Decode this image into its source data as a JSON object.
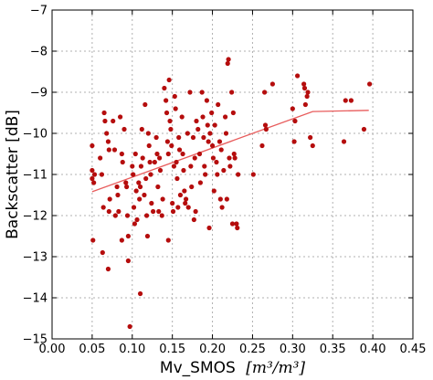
{
  "chart_data": {
    "type": "scatter",
    "xlabel": "Mv_SMOS",
    "xlabel_unit": "[m³/m³]",
    "ylabel": "Backscatter [dB]",
    "xlim": [
      0.0,
      0.45
    ],
    "ylim": [
      -15,
      -7
    ],
    "x_ticks": [
      "0.00",
      "0.05",
      "0.10",
      "0.15",
      "0.20",
      "0.25",
      "0.30",
      "0.35",
      "0.40",
      "0.45"
    ],
    "y_ticks": [
      "−15",
      "−14",
      "−13",
      "−12",
      "−11",
      "−10",
      "−9",
      "−8",
      "−7"
    ],
    "grid": true,
    "point_color": "#b50d0d",
    "line_color": "#e85c5c",
    "points": [
      [
        0.05,
        -10.3
      ],
      [
        0.05,
        -10.9
      ],
      [
        0.05,
        -11.1
      ],
      [
        0.052,
        -11.2
      ],
      [
        0.053,
        -11.0
      ],
      [
        0.051,
        -12.6
      ],
      [
        0.06,
        -10.6
      ],
      [
        0.062,
        -11.0
      ],
      [
        0.064,
        -11.8
      ],
      [
        0.063,
        -12.9
      ],
      [
        0.065,
        -9.5
      ],
      [
        0.066,
        -9.7
      ],
      [
        0.068,
        -10.0
      ],
      [
        0.07,
        -10.2
      ],
      [
        0.071,
        -10.4
      ],
      [
        0.071,
        -11.9
      ],
      [
        0.072,
        -11.6
      ],
      [
        0.07,
        -13.3
      ],
      [
        0.076,
        -9.7
      ],
      [
        0.078,
        -10.4
      ],
      [
        0.079,
        -12.0
      ],
      [
        0.081,
        -11.3
      ],
      [
        0.082,
        -11.5
      ],
      [
        0.083,
        -11.9
      ],
      [
        0.085,
        -9.6
      ],
      [
        0.087,
        -10.5
      ],
      [
        0.088,
        -10.7
      ],
      [
        0.087,
        -12.6
      ],
      [
        0.09,
        -9.9
      ],
      [
        0.092,
        -11.2
      ],
      [
        0.093,
        -11.3
      ],
      [
        0.094,
        -12.0
      ],
      [
        0.095,
        -12.5
      ],
      [
        0.095,
        -13.1
      ],
      [
        0.097,
        -14.7
      ],
      [
        0.1,
        -10.8
      ],
      [
        0.101,
        -11.0
      ],
      [
        0.102,
        -11.8
      ],
      [
        0.103,
        -12.2
      ],
      [
        0.104,
        -10.5
      ],
      [
        0.105,
        -11.4
      ],
      [
        0.106,
        -12.1
      ],
      [
        0.108,
        -11.2
      ],
      [
        0.109,
        -11.6
      ],
      [
        0.11,
        -11.3
      ],
      [
        0.111,
        -10.8
      ],
      [
        0.11,
        -13.9
      ],
      [
        0.112,
        -9.9
      ],
      [
        0.113,
        -10.6
      ],
      [
        0.115,
        -11.5
      ],
      [
        0.116,
        -9.3
      ],
      [
        0.117,
        -11.1
      ],
      [
        0.118,
        -12.0
      ],
      [
        0.119,
        -12.5
      ],
      [
        0.12,
        -10.0
      ],
      [
        0.121,
        -10.3
      ],
      [
        0.122,
        -10.7
      ],
      [
        0.123,
        -11.0
      ],
      [
        0.124,
        -11.7
      ],
      [
        0.126,
        -11.9
      ],
      [
        0.128,
        -10.7
      ],
      [
        0.13,
        -10.1
      ],
      [
        0.131,
        -10.5
      ],
      [
        0.132,
        -11.3
      ],
      [
        0.133,
        -11.9
      ],
      [
        0.134,
        -10.6
      ],
      [
        0.135,
        -10.9
      ],
      [
        0.137,
        -12.0
      ],
      [
        0.138,
        -11.6
      ],
      [
        0.14,
        -8.9
      ],
      [
        0.142,
        -9.2
      ],
      [
        0.143,
        -9.5
      ],
      [
        0.144,
        -10.2
      ],
      [
        0.145,
        -10.5
      ],
      [
        0.145,
        -12.6
      ],
      [
        0.146,
        -8.7
      ],
      [
        0.147,
        -9.7
      ],
      [
        0.148,
        -9.9
      ],
      [
        0.149,
        -10.3
      ],
      [
        0.15,
        -11.7
      ],
      [
        0.151,
        -11.9
      ],
      [
        0.152,
        -10.8
      ],
      [
        0.153,
        -9.1
      ],
      [
        0.154,
        -9.4
      ],
      [
        0.155,
        -10.7
      ],
      [
        0.156,
        -11.1
      ],
      [
        0.157,
        -11.8
      ],
      [
        0.158,
        -10.1
      ],
      [
        0.159,
        -10.4
      ],
      [
        0.16,
        -11.5
      ],
      [
        0.162,
        -9.6
      ],
      [
        0.163,
        -10.5
      ],
      [
        0.164,
        -10.9
      ],
      [
        0.165,
        -11.4
      ],
      [
        0.166,
        -11.7
      ],
      [
        0.167,
        -11.6
      ],
      [
        0.169,
        -10.0
      ],
      [
        0.17,
        -11.8
      ],
      [
        0.172,
        -9.0
      ],
      [
        0.173,
        -10.8
      ],
      [
        0.174,
        -11.3
      ],
      [
        0.176,
        -10.1
      ],
      [
        0.177,
        -12.1
      ],
      [
        0.178,
        -10.6
      ],
      [
        0.179,
        -11.9
      ],
      [
        0.18,
        -9.7
      ],
      [
        0.182,
        -9.9
      ],
      [
        0.184,
        -10.5
      ],
      [
        0.185,
        -11.2
      ],
      [
        0.187,
        -9.0
      ],
      [
        0.188,
        -9.6
      ],
      [
        0.189,
        -10.1
      ],
      [
        0.19,
        -10.8
      ],
      [
        0.191,
        -11.0
      ],
      [
        0.193,
        -9.2
      ],
      [
        0.194,
        -9.8
      ],
      [
        0.195,
        -10.2
      ],
      [
        0.196,
        -12.3
      ],
      [
        0.197,
        -10.0
      ],
      [
        0.199,
        -9.5
      ],
      [
        0.2,
        -10.3
      ],
      [
        0.201,
        -10.6
      ],
      [
        0.202,
        -11.4
      ],
      [
        0.203,
        -9.8
      ],
      [
        0.205,
        -10.7
      ],
      [
        0.206,
        -11.0
      ],
      [
        0.207,
        -9.3
      ],
      [
        0.209,
        -10.2
      ],
      [
        0.21,
        -11.6
      ],
      [
        0.211,
        -10.4
      ],
      [
        0.212,
        -11.8
      ],
      [
        0.214,
        -10.9
      ],
      [
        0.216,
        -9.6
      ],
      [
        0.217,
        -10.0
      ],
      [
        0.218,
        -11.6
      ],
      [
        0.219,
        -8.3
      ],
      [
        0.22,
        -8.2
      ],
      [
        0.221,
        -10.6
      ],
      [
        0.222,
        -10.8
      ],
      [
        0.224,
        -9.0
      ],
      [
        0.225,
        -12.2
      ],
      [
        0.226,
        -9.5
      ],
      [
        0.227,
        -10.5
      ],
      [
        0.228,
        -10.6
      ],
      [
        0.23,
        -12.2
      ],
      [
        0.231,
        -12.3
      ],
      [
        0.232,
        -11.0
      ],
      [
        0.251,
        -11.0
      ],
      [
        0.262,
        -10.3
      ],
      [
        0.265,
        -9.0
      ],
      [
        0.266,
        -9.8
      ],
      [
        0.267,
        -9.9
      ],
      [
        0.275,
        -8.8
      ],
      [
        0.3,
        -9.4
      ],
      [
        0.302,
        -10.2
      ],
      [
        0.303,
        -9.7
      ],
      [
        0.306,
        -8.6
      ],
      [
        0.314,
        -8.8
      ],
      [
        0.315,
        -8.9
      ],
      [
        0.316,
        -9.3
      ],
      [
        0.318,
        -9.1
      ],
      [
        0.319,
        -9.0
      ],
      [
        0.322,
        -10.1
      ],
      [
        0.325,
        -10.3
      ],
      [
        0.364,
        -10.2
      ],
      [
        0.366,
        -9.2
      ],
      [
        0.373,
        -9.2
      ],
      [
        0.389,
        -9.9
      ],
      [
        0.396,
        -8.8
      ]
    ],
    "fit_line": [
      [
        0.05,
        -11.42
      ],
      [
        0.325,
        -9.47
      ],
      [
        0.395,
        -9.44
      ]
    ]
  }
}
